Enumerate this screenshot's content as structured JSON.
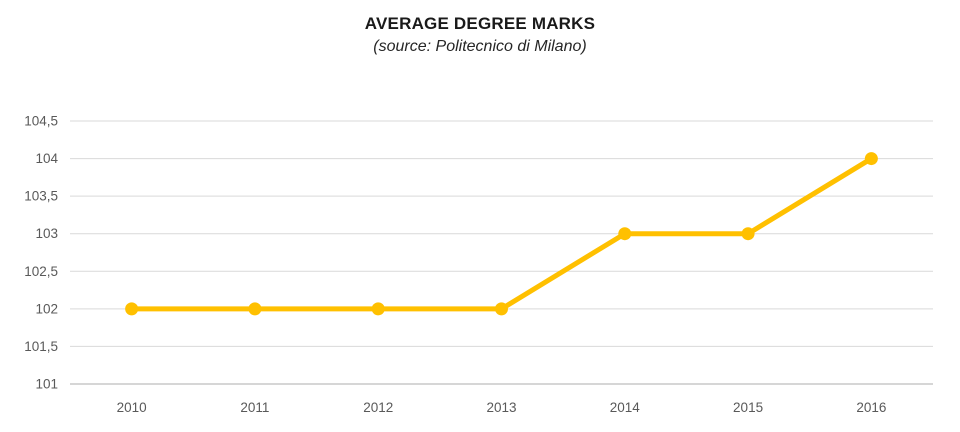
{
  "chart": {
    "title": "AVERAGE DEGREE MARKS",
    "subtitle": "(source: Politecnico di Milano)"
  },
  "chart_data": {
    "type": "line",
    "title": "AVERAGE DEGREE MARKS",
    "subtitle": "(source: Politecnico di Milano)",
    "categories": [
      "2010",
      "2011",
      "2012",
      "2013",
      "2014",
      "2015",
      "2016"
    ],
    "values": [
      102,
      102,
      102,
      102,
      103,
      103,
      104
    ],
    "xlabel": "",
    "ylabel": "",
    "ylim": [
      101,
      104.5
    ],
    "ytick_step": 0.5,
    "ytick_labels": [
      "101",
      "101,5",
      "102",
      "102,5",
      "103",
      "103,5",
      "104",
      "104,5"
    ],
    "decimal_separator": ",",
    "grid": true,
    "legend_position": "none",
    "colors": {
      "line": "#FFC000",
      "marker": "#FFC000",
      "gridline": "#D9D9D9",
      "axis_line": "#C9C9C9",
      "axis_text": "#595959",
      "title_text": "#1A1A1A"
    },
    "line_width": 5,
    "marker_radius": 6.5
  }
}
